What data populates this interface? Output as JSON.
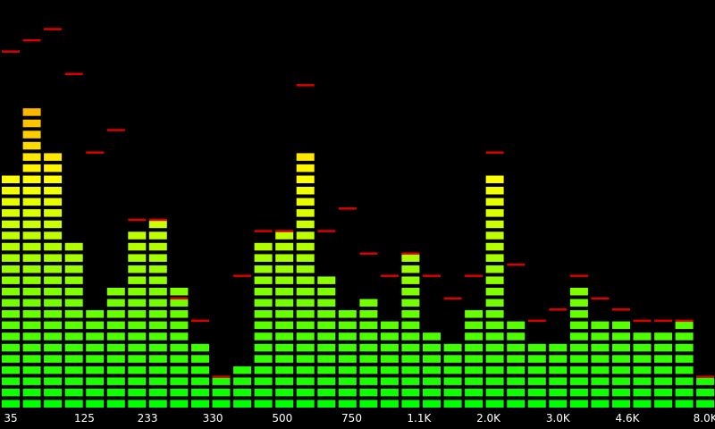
{
  "colors": {
    "background": "#000000",
    "bar_low": "#00ff00",
    "bar_mid": "#ffff00",
    "bar_high": "#ffaa00",
    "peak": "#dd0000",
    "label": "#ffffff"
  },
  "segments_per_band": 40,
  "bands": [
    {
      "level": 21,
      "peak": 32
    },
    {
      "level": 27,
      "peak": 33
    },
    {
      "level": 23,
      "peak": 34
    },
    {
      "level": 15,
      "peak": 30
    },
    {
      "level": 9,
      "peak": 23
    },
    {
      "level": 11,
      "peak": 25
    },
    {
      "level": 16,
      "peak": 17
    },
    {
      "level": 17,
      "peak": 17
    },
    {
      "level": 11,
      "peak": 10
    },
    {
      "level": 6,
      "peak": 8
    },
    {
      "level": 3,
      "peak": 3
    },
    {
      "level": 4,
      "peak": 12
    },
    {
      "level": 15,
      "peak": 16
    },
    {
      "level": 16,
      "peak": 16
    },
    {
      "level": 23,
      "peak": 29
    },
    {
      "level": 12,
      "peak": 16
    },
    {
      "level": 9,
      "peak": 18
    },
    {
      "level": 10,
      "peak": 14
    },
    {
      "level": 8,
      "peak": 12
    },
    {
      "level": 14,
      "peak": 14
    },
    {
      "level": 7,
      "peak": 12
    },
    {
      "level": 6,
      "peak": 10
    },
    {
      "level": 9,
      "peak": 12
    },
    {
      "level": 21,
      "peak": 23
    },
    {
      "level": 8,
      "peak": 13
    },
    {
      "level": 6,
      "peak": 8
    },
    {
      "level": 6,
      "peak": 9
    },
    {
      "level": 11,
      "peak": 12
    },
    {
      "level": 8,
      "peak": 10
    },
    {
      "level": 8,
      "peak": 9
    },
    {
      "level": 7,
      "peak": 8
    },
    {
      "level": 7,
      "peak": 8
    },
    {
      "level": 8,
      "peak": 8
    },
    {
      "level": 3,
      "peak": 3
    }
  ],
  "labels": [
    {
      "text": "35",
      "band": 0
    },
    {
      "text": "125",
      "band": 3.5
    },
    {
      "text": "233",
      "band": 6.5
    },
    {
      "text": "330",
      "band": 9.6
    },
    {
      "text": "500",
      "band": 12.9
    },
    {
      "text": "750",
      "band": 16.2
    },
    {
      "text": "1.1K",
      "band": 19.4
    },
    {
      "text": "2.0K",
      "band": 22.7
    },
    {
      "text": "3.0K",
      "band": 26
    },
    {
      "text": "4.6K",
      "band": 29.3
    },
    {
      "text": "8.0K",
      "band": 33
    }
  ]
}
